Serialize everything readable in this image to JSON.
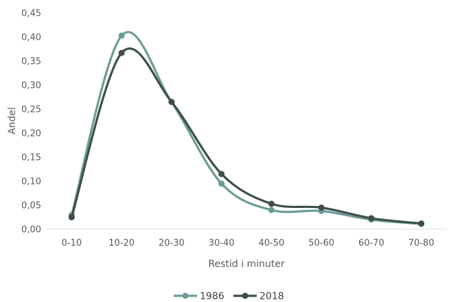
{
  "chart_data": {
    "type": "line",
    "smooth": true,
    "categories": [
      "0-10",
      "10-20",
      "20-30",
      "30-40",
      "40-50",
      "50-60",
      "60-70",
      "70-80"
    ],
    "series": [
      {
        "name": "1986",
        "values": [
          0.03,
          0.403,
          0.265,
          0.095,
          0.04,
          0.038,
          0.02,
          0.011
        ],
        "color": "#6b9b96"
      },
      {
        "name": "2018",
        "values": [
          0.025,
          0.367,
          0.265,
          0.115,
          0.053,
          0.045,
          0.023,
          0.012
        ],
        "color": "#3c4e49"
      }
    ],
    "y_ticks": [
      "0,00",
      "0,05",
      "0,10",
      "0,15",
      "0,20",
      "0,25",
      "0,30",
      "0,35",
      "0,40",
      "0,45"
    ],
    "ylim": [
      0,
      0.45
    ],
    "xlabel": "Restid i minuter",
    "ylabel": "Andel",
    "grid": false,
    "legend_position": "bottom"
  }
}
